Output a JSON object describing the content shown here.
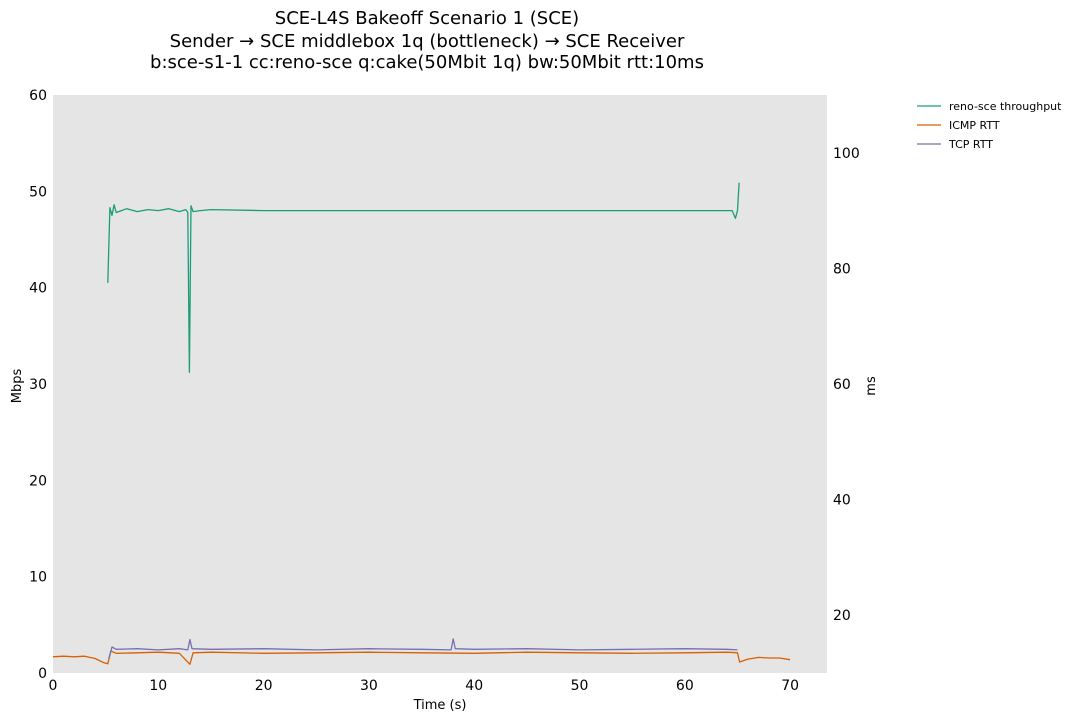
{
  "chart_data": {
    "type": "line",
    "title_lines": [
      "SCE-L4S Bakeoff Scenario 1 (SCE)",
      "Sender → SCE middlebox 1q (bottleneck) → SCE Receiver",
      "b:sce-s1-1 cc:reno-sce q:cake(50Mbit 1q) bw:50Mbit rtt:10ms"
    ],
    "xlabel": "Time (s)",
    "ylabel": "Mbps",
    "y2label": "ms",
    "xlim": [
      0,
      73.5
    ],
    "ylim": [
      0,
      60
    ],
    "y2lim": [
      10,
      110
    ],
    "xticks": [
      "0",
      "10",
      "20",
      "30",
      "40",
      "50",
      "60",
      "70"
    ],
    "yticks": [
      "0",
      "10",
      "20",
      "30",
      "40",
      "50",
      "60"
    ],
    "y2ticks": [
      "20",
      "40",
      "60",
      "80",
      "100"
    ],
    "grid": false,
    "background": "#e5e5e5",
    "legend_position": "outside-top-right",
    "series": [
      {
        "name": "reno-sce throughput",
        "axis": "left",
        "color": "#1b9e77",
        "x": [
          5.2,
          5.4,
          5.6,
          5.8,
          6.0,
          6.5,
          7.0,
          8.0,
          9.0,
          10.0,
          11.0,
          12.0,
          12.6,
          12.8,
          12.95,
          13.1,
          13.3,
          14.0,
          15.0,
          20.0,
          25.0,
          30.0,
          35.0,
          40.0,
          45.0,
          50.0,
          55.0,
          60.0,
          63.0,
          64.5,
          64.8,
          65.0,
          65.15
        ],
        "values": [
          40.5,
          48.3,
          47.5,
          48.6,
          47.8,
          48.0,
          48.2,
          47.9,
          48.1,
          48.0,
          48.2,
          47.9,
          48.1,
          47.8,
          31.2,
          48.5,
          47.9,
          48.0,
          48.1,
          48.0,
          48.0,
          48.0,
          48.0,
          48.0,
          48.0,
          48.0,
          48.0,
          48.0,
          48.0,
          48.0,
          47.2,
          48.0,
          50.9
        ]
      },
      {
        "name": "ICMP RTT",
        "axis": "right",
        "color": "#d95f02",
        "x": [
          0.0,
          1.0,
          2.0,
          3.0,
          4.0,
          4.8,
          5.2,
          5.5,
          6.0,
          8.0,
          10.0,
          12.0,
          13.0,
          13.3,
          15.0,
          20.0,
          25.0,
          30.0,
          35.0,
          40.0,
          45.0,
          50.0,
          55.0,
          60.0,
          64.0,
          65.0,
          65.2,
          66.0,
          67.0,
          68.0,
          69.0,
          70.0
        ],
        "values": [
          12.8,
          12.9,
          12.8,
          12.9,
          12.5,
          11.8,
          11.6,
          13.8,
          13.4,
          13.5,
          13.6,
          13.4,
          11.5,
          13.5,
          13.6,
          13.4,
          13.5,
          13.6,
          13.5,
          13.4,
          13.6,
          13.5,
          13.4,
          13.5,
          13.6,
          13.5,
          11.9,
          12.4,
          12.7,
          12.6,
          12.6,
          12.3
        ]
      },
      {
        "name": "TCP RTT",
        "axis": "right",
        "color": "#7570b3",
        "x": [
          5.3,
          5.6,
          6.0,
          8.0,
          10.0,
          12.0,
          12.8,
          13.0,
          13.2,
          15.0,
          20.0,
          25.0,
          30.0,
          35.0,
          37.8,
          38.0,
          38.2,
          40.0,
          45.0,
          50.0,
          55.0,
          60.0,
          64.0,
          65.0
        ],
        "values": [
          12.5,
          14.5,
          14.1,
          14.2,
          14.0,
          14.2,
          14.0,
          15.8,
          14.2,
          14.1,
          14.2,
          14.0,
          14.2,
          14.1,
          14.0,
          15.9,
          14.2,
          14.1,
          14.2,
          14.0,
          14.1,
          14.2,
          14.1,
          14.0
        ]
      }
    ]
  }
}
